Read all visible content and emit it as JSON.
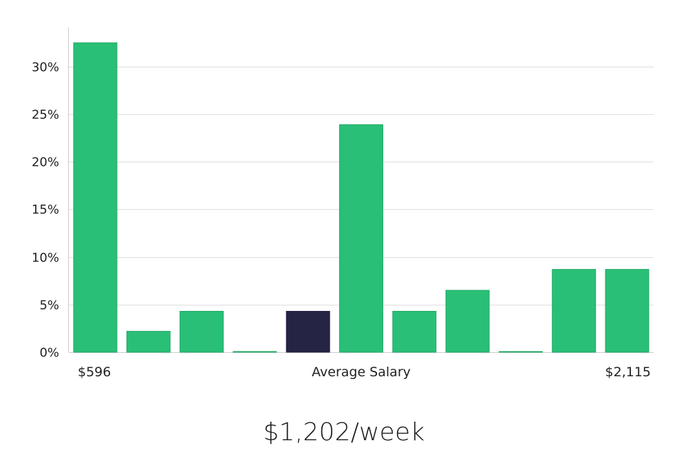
{
  "chart_data": {
    "type": "bar",
    "title": "",
    "ylim": [
      0,
      34
    ],
    "y_ticks": [
      {
        "value": 0,
        "label": "0%"
      },
      {
        "value": 5,
        "label": "5%"
      },
      {
        "value": 10,
        "label": "10%"
      },
      {
        "value": 15,
        "label": "15%"
      },
      {
        "value": 20,
        "label": "20%"
      },
      {
        "value": 25,
        "label": "25%"
      },
      {
        "value": 30,
        "label": "30%"
      }
    ],
    "values": [
      32.5,
      2.2,
      4.3,
      0,
      4.3,
      23.9,
      4.3,
      6.5,
      0,
      8.7,
      8.7
    ],
    "highlight_index": 4,
    "x_labels": {
      "left": "$596",
      "center": "Average Salary",
      "right": "$2,115"
    },
    "grid": true,
    "colors": {
      "bar": "#2abf76",
      "bar_stroke": "#22a866",
      "highlight": "#262444",
      "grid": "#dddddd",
      "axis": "#cccccc"
    }
  },
  "salary_label": "$1,202/week"
}
